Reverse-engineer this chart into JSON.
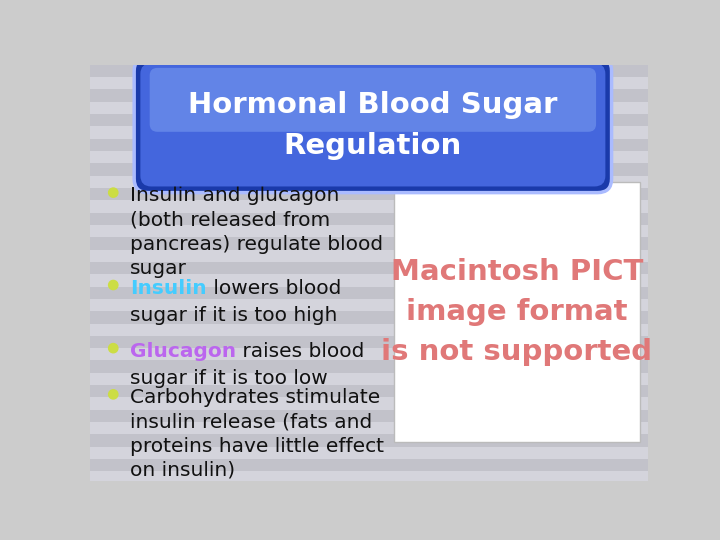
{
  "title_line1": "Hormonal Blood Sugar",
  "title_line2": "Regulation",
  "title_color": "#ffffff",
  "background_color": "#cccccc",
  "stripe_color1": "#c2c2ca",
  "stripe_color2": "#d4d4dc",
  "pill_outer_color": "#1a3aaa",
  "pill_mid_color": "#4466dd",
  "pill_highlight_color": "#7799ee",
  "pill_edge_color": "#aabbff",
  "bullet_dot_color": "#ccdd44",
  "bullet_points": [
    {
      "parts": [
        {
          "text": "Insulin and glucagon\n(both released from\npancreas) regulate blood\nsugar",
          "color": "#111111",
          "bold": false
        }
      ]
    },
    {
      "parts": [
        {
          "text": "Insulin",
          "color": "#44ccff",
          "bold": true
        },
        {
          "text": " lowers blood\nsugar if it is too high",
          "color": "#111111",
          "bold": false
        }
      ]
    },
    {
      "parts": [
        {
          "text": "Glucagon",
          "color": "#bb66ee",
          "bold": true
        },
        {
          "text": " raises blood\nsugar if it is too low",
          "color": "#111111",
          "bold": false
        }
      ]
    },
    {
      "parts": [
        {
          "text": "Carbohydrates stimulate\ninsulin release (fats and\nproteins have little effect\non insulin)",
          "color": "#111111",
          "bold": false
        }
      ]
    }
  ],
  "pict_box_color": "#ffffff",
  "pict_text_line1": "Macintosh PICT",
  "pict_text_line2": "image format",
  "pict_text_line3": "is not supported",
  "pict_text_color": "#e07878"
}
